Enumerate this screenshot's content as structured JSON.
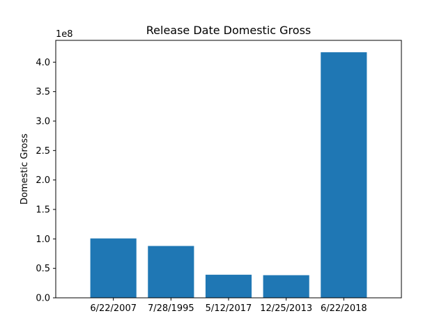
{
  "chart_data": {
    "type": "bar",
    "title": "Release Date Domestic Gross",
    "xlabel": "",
    "ylabel": "Domestic Gross",
    "offset_label": "1e8",
    "categories": [
      "6/22/2007",
      "7/28/1995",
      "5/12/2017",
      "12/25/2013",
      "6/22/2018"
    ],
    "values": [
      100800000,
      88000000,
      39200000,
      38400000,
      416800000
    ],
    "ylim": [
      0,
      437000000
    ],
    "yticks": [
      0,
      50000000,
      100000000,
      150000000,
      200000000,
      250000000,
      300000000,
      350000000,
      400000000
    ],
    "ytick_labels": [
      "0.0",
      "0.5",
      "1.0",
      "1.5",
      "2.0",
      "2.5",
      "3.0",
      "3.5",
      "4.0"
    ],
    "bar_color": "#1f77b4",
    "grid": false,
    "legend": "none"
  }
}
